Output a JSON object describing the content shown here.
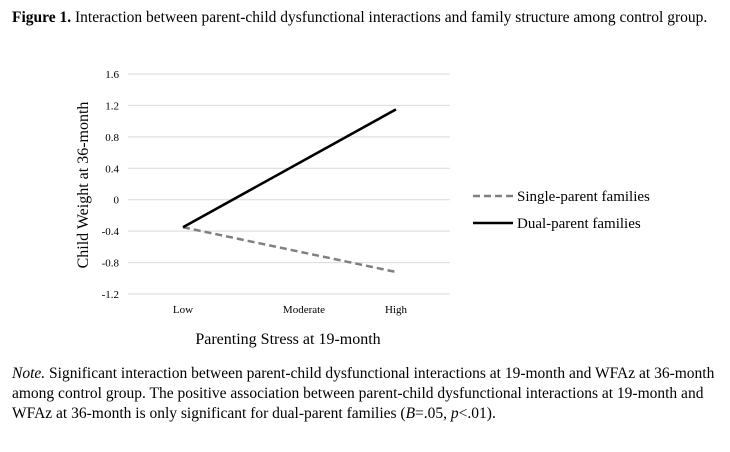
{
  "caption": {
    "label": "Figure 1.",
    "text": " Interaction between parent-child dysfunctional interactions and family structure among control group."
  },
  "chart_data": {
    "type": "line",
    "categories": [
      "Low",
      "Moderate",
      "High"
    ],
    "series": [
      {
        "name": "Single-parent families",
        "points": [
          {
            "x": "Low",
            "y": -0.35
          },
          {
            "x": "High",
            "y": -0.92
          }
        ],
        "color": "#808080",
        "style": "dashed"
      },
      {
        "name": "Dual-parent families",
        "points": [
          {
            "x": "Low",
            "y": -0.35
          },
          {
            "x": "High",
            "y": 1.15
          }
        ],
        "color": "#000000",
        "style": "solid"
      }
    ],
    "xlabel": "Parenting Stress at 19-month",
    "ylabel": "Child Weight at 36-month",
    "ylim": [
      -1.2,
      1.6
    ],
    "yticks": [
      "1.6",
      "1.2",
      "0.8",
      "0.4",
      "0",
      "-0.4",
      "-0.8",
      "-1.2"
    ],
    "ytick_values": [
      1.6,
      1.2,
      0.8,
      0.4,
      0,
      -0.4,
      -0.8,
      -1.2
    ],
    "grid": true,
    "legend_position": "right"
  },
  "note": {
    "label": "Note.",
    "text1": " Significant interaction between parent-child dysfunctional interactions at 19-month and WFAz at 36-month among control group. The positive association between parent-child dysfunctional interactions at 19-month and WFAz at 36-month is only significant for dual-parent families (",
    "b_label": "B",
    "text2": "=.05, ",
    "p_label": "p",
    "text3": "<.01)."
  }
}
